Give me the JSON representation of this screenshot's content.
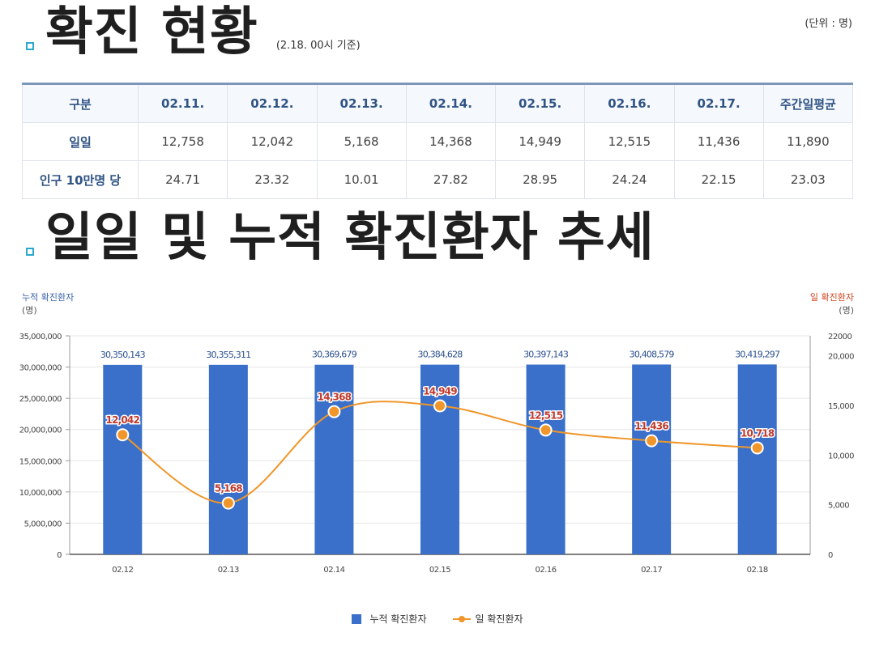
{
  "section1": {
    "title": "확진 현황",
    "note": "(2.18. 00시 기준)",
    "unit": "(단위 : 명)"
  },
  "table": {
    "headers": [
      "구분",
      "02.11.",
      "02.12.",
      "02.13.",
      "02.14.",
      "02.15.",
      "02.16.",
      "02.17.",
      "주간일평균"
    ],
    "rows": [
      {
        "label": "일일",
        "values": [
          "12,758",
          "12,042",
          "5,168",
          "14,368",
          "14,949",
          "12,515",
          "11,436",
          "11,890"
        ]
      },
      {
        "label": "인구 10만명 당",
        "values": [
          "24.71",
          "23.32",
          "10.01",
          "27.82",
          "28.95",
          "24.24",
          "22.15",
          "23.03"
        ]
      }
    ]
  },
  "section2": {
    "title": "일일 및 누적 확진환자 추세"
  },
  "chart_data": {
    "type": "bar+line",
    "categories": [
      "02.12",
      "02.13",
      "02.14",
      "02.15",
      "02.16",
      "02.17",
      "02.18"
    ],
    "series": [
      {
        "name": "누적 확진환자",
        "type": "bar",
        "axis": "left",
        "values": [
          30350143,
          30355311,
          30369679,
          30384628,
          30397143,
          30408579,
          30419297
        ],
        "labels": [
          "30,350,143",
          "30,355,311",
          "30,369,679",
          "30,384,628",
          "30,397,143",
          "30,408,579",
          "30,419,297"
        ],
        "color": "#3a70c9"
      },
      {
        "name": "일 확진환자",
        "type": "line",
        "axis": "right",
        "values": [
          12042,
          5168,
          14368,
          14949,
          12515,
          11436,
          10718
        ],
        "labels": [
          "12,042",
          "5,168",
          "14,368",
          "14,949",
          "12,515",
          "11,436",
          "10,718"
        ],
        "color": "#f0962a"
      }
    ],
    "left_axis": {
      "title": "누적 확진환자",
      "unit": "(명)",
      "ylim": [
        0,
        35000000
      ],
      "ticks": [
        0,
        5000000,
        10000000,
        15000000,
        20000000,
        25000000,
        30000000,
        35000000
      ],
      "tick_labels": [
        "0",
        "5,000,000",
        "10,000,000",
        "15,000,000",
        "20,000,000",
        "25,000,000",
        "30,000,000",
        "35,000,000"
      ]
    },
    "right_axis": {
      "title": "일 확진환자",
      "unit": "(명)",
      "ylim": [
        0,
        22000
      ],
      "ticks": [
        0,
        5000,
        10000,
        15000,
        20000,
        22000
      ],
      "tick_labels": [
        "0",
        "5,000",
        "10,000",
        "15,000",
        "20,000",
        "22000"
      ]
    },
    "legend_position": "bottom-center"
  },
  "colors": {
    "accent": "#2aa8cf",
    "bar": "#3a70c9",
    "line": "#f0962a",
    "label_red": "#c0392b",
    "header_text": "#2f5384"
  }
}
